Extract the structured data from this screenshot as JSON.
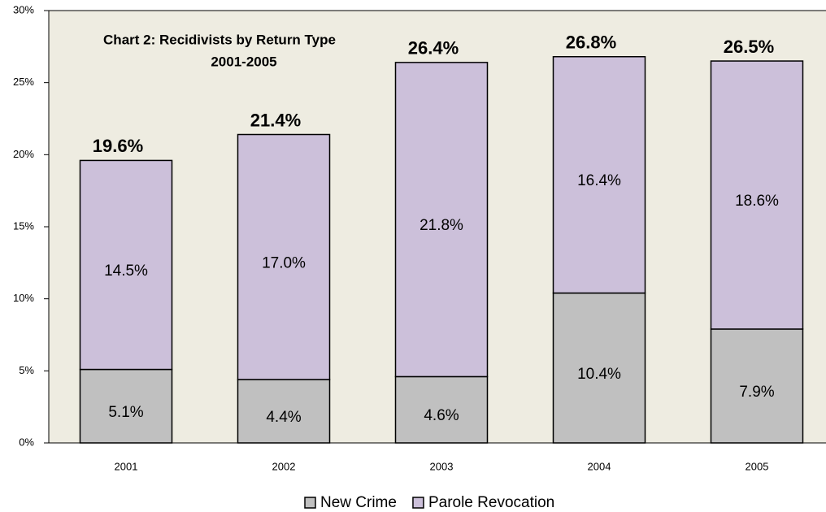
{
  "chart_data": {
    "type": "stacked_bar",
    "title": "Chart 2:  Recidivists  by Return Type",
    "subtitle": "2001-2005",
    "categories": [
      "2001",
      "2002",
      "2003",
      "2004",
      "2005"
    ],
    "series": [
      {
        "name": "New Crime",
        "color": "#c0c0c0",
        "values": [
          5.1,
          4.4,
          4.6,
          10.4,
          7.9
        ],
        "value_labels": [
          "5.1%",
          "4.4%",
          "4.6%",
          "10.4%",
          "7.9%"
        ]
      },
      {
        "name": "Parole Revocation",
        "color": "#ccc0da",
        "values": [
          14.5,
          17.0,
          21.8,
          16.4,
          18.6
        ],
        "value_labels": [
          "14.5%",
          "17.0%",
          "21.8%",
          "16.4%",
          "18.6%"
        ]
      }
    ],
    "totals": [
      19.6,
      21.4,
      26.4,
      26.8,
      26.5
    ],
    "total_labels": [
      "19.6%",
      "21.4%",
      "26.4%",
      "26.8%",
      "26.5%"
    ],
    "ylim": [
      0,
      30
    ],
    "yticks": [
      {
        "value": 0,
        "label": "0%"
      },
      {
        "value": 5,
        "label": "5%"
      },
      {
        "value": 10,
        "label": "10%"
      },
      {
        "value": 15,
        "label": "15%"
      },
      {
        "value": 20,
        "label": "20%"
      },
      {
        "value": 25,
        "label": "25%"
      },
      {
        "value": 30,
        "label": "30%"
      }
    ],
    "legend": "bottom"
  }
}
